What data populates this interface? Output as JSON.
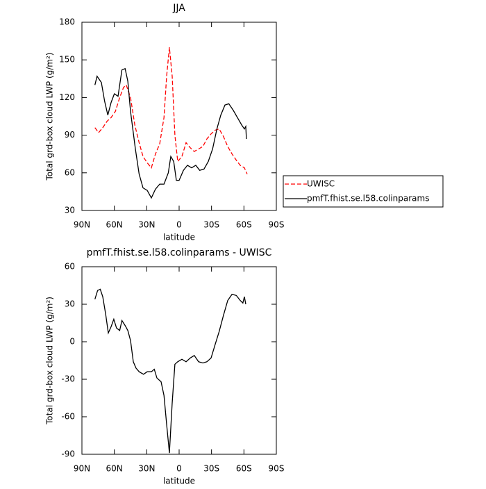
{
  "chart_data": [
    {
      "type": "line",
      "title": "JJA",
      "xlabel": "latitude",
      "ylabel": "Total grd-box cloud LWP (g/m²)",
      "xlim": [
        90,
        -90
      ],
      "xticks": [
        {
          "value": 90,
          "label": "90N"
        },
        {
          "value": 60,
          "label": "60N"
        },
        {
          "value": 30,
          "label": "30N"
        },
        0,
        {
          "value": -30,
          "label": "30S"
        },
        {
          "value": -60,
          "label": "60S"
        },
        {
          "value": -90,
          "label": "90S"
        }
      ],
      "ylim": [
        30,
        180
      ],
      "yticks": [
        30,
        60,
        90,
        120,
        150,
        180
      ],
      "legend": "right",
      "series": [
        {
          "name": "UWISC",
          "color": "#ff0000",
          "linestyle": "dashed",
          "x": [
            78,
            74.6,
            70.7,
            66.8,
            63,
            59,
            55,
            51.5,
            49,
            45,
            41,
            37,
            33.4,
            29.6,
            25.7,
            21.9,
            18,
            14,
            11.6,
            9,
            6.4,
            3.9,
            1.3,
            -2.6,
            -6.4,
            -10.3,
            -14,
            -18,
            -22,
            -25.7,
            -29.6,
            -33.4,
            -37,
            -41,
            -45,
            -49,
            -53,
            -56.6,
            -60.4,
            -63
          ],
          "values": [
            96,
            92,
            96,
            101,
            104,
            109,
            120,
            128,
            130,
            120,
            98,
            84,
            73,
            68,
            64,
            75,
            83,
            104,
            137,
            160,
            137,
            90,
            69,
            73,
            84,
            80,
            77,
            79,
            81,
            87,
            91,
            94,
            95,
            89,
            81,
            75,
            70,
            66,
            64,
            59
          ]
        },
        {
          "name": "pmfT.fhist.se.l58.colinparams",
          "color": "#000000",
          "linestyle": "solid",
          "x": [
            78,
            76,
            72,
            69,
            66,
            63,
            60,
            56.6,
            53,
            50,
            47.5,
            45,
            40.5,
            37,
            33.4,
            29.6,
            25.7,
            21.9,
            18,
            14,
            10,
            7.7,
            5,
            2.6,
            0,
            -4,
            -7.7,
            -11.6,
            -15.4,
            -19,
            -23,
            -27,
            -31,
            -35,
            -38.6,
            -42.4,
            -46,
            -50,
            -54,
            -58,
            -60.4,
            -61.7,
            -62.3
          ],
          "values": [
            130,
            137,
            132,
            117,
            106,
            116,
            123,
            121,
            142,
            143,
            133,
            109,
            79,
            59,
            48,
            46,
            40,
            47,
            51,
            51,
            60,
            73,
            69,
            54,
            54,
            62,
            66,
            64,
            66,
            62,
            63,
            69,
            79,
            95,
            106,
            114,
            115,
            110,
            104,
            98,
            95,
            97,
            87
          ]
        }
      ]
    },
    {
      "type": "line",
      "title": "pmfT.fhist.se.l58.colinparams - UWISC",
      "xlabel": "latitude",
      "ylabel": "Total grd-box cloud LWP (g/m²)",
      "xlim": [
        90,
        -90
      ],
      "xticks": [
        {
          "value": 90,
          "label": "90N"
        },
        {
          "value": 60,
          "label": "60N"
        },
        {
          "value": 30,
          "label": "30N"
        },
        0,
        {
          "value": -30,
          "label": "30S"
        },
        {
          "value": -60,
          "label": "60S"
        },
        {
          "value": -90,
          "label": "90S"
        }
      ],
      "ylim": [
        -90,
        60
      ],
      "yticks": [
        -90,
        -60,
        -30,
        0,
        30,
        60
      ],
      "color": "#000000",
      "x": [
        78,
        75.5,
        73,
        70.7,
        68,
        65.6,
        63,
        60.5,
        58,
        55,
        53,
        50,
        47.5,
        45,
        42.4,
        40,
        37,
        33,
        29.6,
        25.7,
        23,
        20.6,
        16.7,
        14,
        11.6,
        9,
        6.4,
        3.9,
        1.3,
        -2.6,
        -6.4,
        -10.3,
        -14,
        -18,
        -22,
        -25.7,
        -29.6,
        -33.4,
        -37,
        -41,
        -45,
        -49,
        -53,
        -56.6,
        -59,
        -60.4,
        -61.7
      ],
      "values": [
        34,
        41,
        42,
        36,
        22,
        7,
        12,
        18,
        11,
        9,
        17,
        13,
        9,
        1,
        -16,
        -21,
        -24,
        -26,
        -24,
        -24,
        -22,
        -29,
        -32,
        -43,
        -66,
        -89,
        -49,
        -18,
        -16,
        -14,
        -16,
        -13,
        -11,
        -16,
        -17,
        -16,
        -13,
        -2,
        8,
        21,
        33,
        38,
        37,
        33,
        31,
        36,
        30
      ]
    }
  ]
}
